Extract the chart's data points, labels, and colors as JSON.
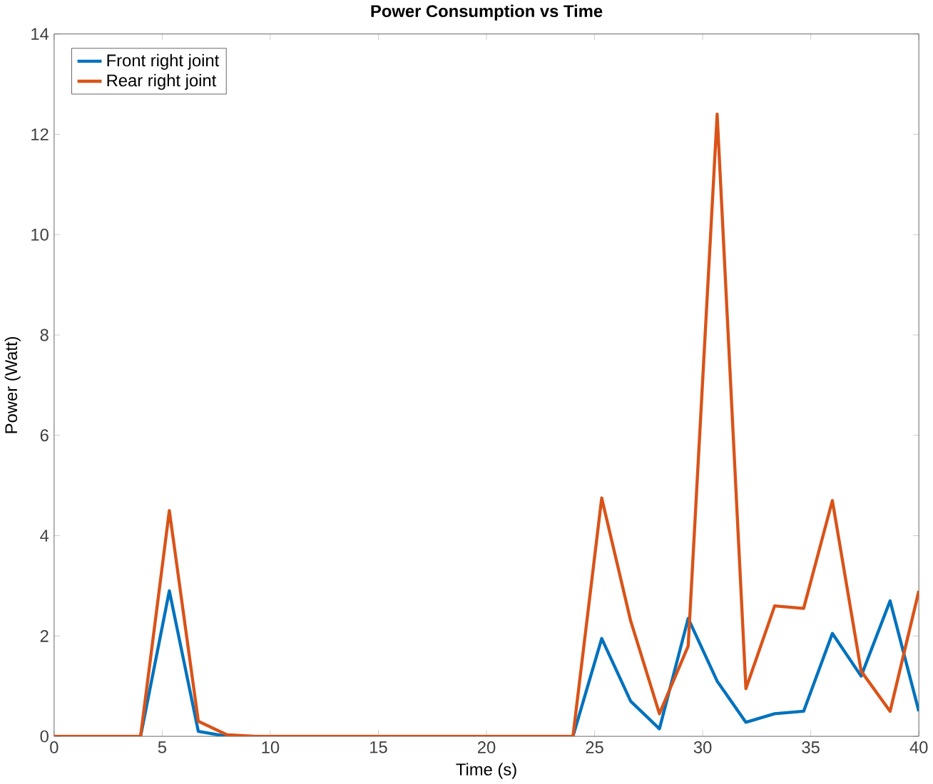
{
  "chart_data": {
    "type": "line",
    "title": "Power Consumption vs Time",
    "xlabel": "Time (s)",
    "ylabel": "Power (Watt)",
    "x": [
      0,
      1.33,
      2.67,
      4,
      5.33,
      6.67,
      8,
      9.33,
      10.67,
      12,
      13.33,
      14.67,
      16,
      17.33,
      18.67,
      20,
      21.33,
      22.67,
      24,
      25.33,
      26.67,
      28,
      29.33,
      30.67,
      32,
      33.33,
      34.67,
      36,
      37.33,
      38.67,
      40
    ],
    "series": [
      {
        "name": "Front right joint",
        "color": "#0072bd",
        "values": [
          null,
          null,
          0,
          0,
          2.9,
          0.1,
          0,
          0,
          0,
          0,
          0,
          0,
          0,
          0,
          0,
          0,
          0,
          0,
          0,
          1.95,
          0.7,
          0.15,
          2.35,
          1.1,
          0.28,
          0.45,
          0.5,
          2.05,
          1.2,
          2.7,
          0.5
        ]
      },
      {
        "name": "Rear right joint",
        "color": "#d95319",
        "values": [
          0,
          0,
          0,
          0,
          4.5,
          0.3,
          0.03,
          0,
          0,
          0,
          0,
          0,
          0,
          0,
          0,
          0,
          0,
          0,
          0,
          4.75,
          2.3,
          0.45,
          1.8,
          12.4,
          0.95,
          2.6,
          2.55,
          4.7,
          1.3,
          0.5,
          2.9
        ]
      }
    ],
    "xlim": [
      0,
      40
    ],
    "ylim": [
      0,
      14
    ],
    "xticks": [
      0,
      5,
      10,
      15,
      20,
      25,
      30,
      35,
      40
    ],
    "yticks": [
      0,
      2,
      4,
      6,
      8,
      10,
      12,
      14
    ],
    "grid": false,
    "legend": "top left",
    "marker": "none",
    "line_style": "solid"
  }
}
